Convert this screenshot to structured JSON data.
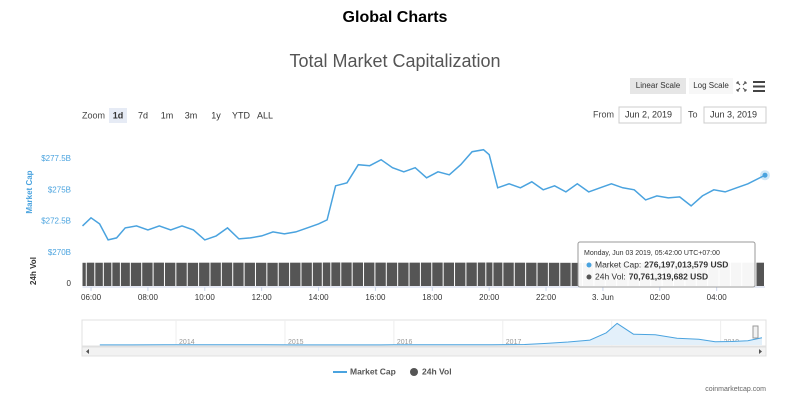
{
  "header": {
    "title": "Global Charts"
  },
  "controls": {
    "scale_buttons": [
      "Linear Scale",
      "Log Scale"
    ],
    "scale_selected": 0,
    "zoom_label": "Zoom",
    "zoom_buttons": [
      "1d",
      "7d",
      "1m",
      "3m",
      "1y",
      "YTD",
      "ALL"
    ],
    "zoom_selected": 0,
    "from_label": "From",
    "from_value": "Jun 2, 2019",
    "to_label": "To",
    "to_value": "Jun 3, 2019"
  },
  "chart_data": {
    "type": "line",
    "title": "Total Market Capitalization",
    "ylabel": "Market Cap",
    "y2label": "24h Vol",
    "log_scale": false,
    "grid": false,
    "x": [
      5.7,
      6.0,
      6.3,
      6.6,
      6.9,
      7.2,
      7.6,
      8.0,
      8.4,
      8.8,
      9.2,
      9.6,
      10.0,
      10.4,
      10.8,
      11.2,
      11.6,
      12.0,
      12.4,
      12.8,
      13.2,
      13.6,
      14.0,
      14.3,
      14.6,
      15.0,
      15.4,
      15.8,
      16.2,
      16.6,
      17.0,
      17.4,
      17.8,
      18.2,
      18.6,
      19.0,
      19.4,
      19.8,
      20.0,
      20.3,
      20.7,
      21.1,
      21.5,
      21.9,
      22.3,
      22.7,
      23.1,
      23.5,
      23.9,
      24.3,
      24.7,
      25.1,
      25.5,
      25.9,
      26.3,
      26.7,
      27.1,
      27.5,
      27.9,
      28.3,
      28.7,
      29.1,
      29.7
    ],
    "xlim": [
      5.7,
      29.7
    ],
    "xticks": [
      {
        "value": 6,
        "label": "06:00"
      },
      {
        "value": 8,
        "label": "08:00"
      },
      {
        "value": 10,
        "label": "10:00"
      },
      {
        "value": 12,
        "label": "12:00"
      },
      {
        "value": 14,
        "label": "14:00"
      },
      {
        "value": 16,
        "label": "16:00"
      },
      {
        "value": 18,
        "label": "18:00"
      },
      {
        "value": 20,
        "label": "20:00"
      },
      {
        "value": 22,
        "label": "22:00"
      },
      {
        "value": 24,
        "label": "3. Jun"
      },
      {
        "value": 26,
        "label": "02:00"
      },
      {
        "value": 28,
        "label": "04:00"
      }
    ],
    "ylim": [
      270000000000,
      279000000000
    ],
    "yticks": [
      {
        "value": 270000000000,
        "label": "$270B"
      },
      {
        "value": 272500000000,
        "label": "$272.5B"
      },
      {
        "value": 275000000000,
        "label": "$275B"
      },
      {
        "value": 277500000000,
        "label": "$277.5B"
      }
    ],
    "y2lim": [
      0,
      85000000000
    ],
    "y2ticks": [
      0
    ],
    "series": [
      {
        "name": "Market Cap",
        "color": "#4aa3df",
        "values": [
          272160000000,
          272800000000,
          272320000000,
          271040000000,
          271200000000,
          272000000000,
          272160000000,
          271840000000,
          272160000000,
          271840000000,
          272160000000,
          271840000000,
          271040000000,
          271360000000,
          272000000000,
          271120000000,
          271200000000,
          271360000000,
          271680000000,
          271520000000,
          271680000000,
          272000000000,
          272320000000,
          272640000000,
          275350000000,
          275590000000,
          277030000000,
          276950000000,
          277430000000,
          276790000000,
          276470000000,
          276790000000,
          275990000000,
          276470000000,
          276230000000,
          277030000000,
          278070000000,
          278230000000,
          277830000000,
          275190000000,
          275510000000,
          275190000000,
          275670000000,
          275030000000,
          275350000000,
          274870000000,
          275510000000,
          274870000000,
          275190000000,
          275510000000,
          275190000000,
          275030000000,
          274230000000,
          274550000000,
          274390000000,
          274470000000,
          273750000000,
          274550000000,
          275030000000,
          274870000000,
          275190000000,
          275510000000,
          276197013579
        ]
      },
      {
        "name": "24h Vol",
        "color": "#555555",
        "axis": "y2",
        "values": [
          70500000000,
          70800000000,
          70600000000,
          70900000000,
          71000000000,
          70700000000,
          70600000000,
          70800000000,
          70900000000,
          70700000000,
          70600000000,
          70500000000,
          70800000000,
          70900000000,
          71000000000,
          70800000000,
          70700000000,
          70600000000,
          70500000000,
          70700000000,
          70800000000,
          70900000000,
          71000000000,
          71200000000,
          71400000000,
          71300000000,
          71200000000,
          71100000000,
          71000000000,
          70900000000,
          70800000000,
          70900000000,
          71000000000,
          71100000000,
          71000000000,
          70900000000,
          71100000000,
          71200000000,
          71300000000,
          71100000000,
          70900000000,
          70800000000,
          70700000000,
          70600000000,
          70500000000,
          70400000000,
          70300000000,
          70400000000,
          70500000000,
          70600000000,
          70500000000,
          70400000000,
          70300000000,
          70200000000,
          70300000000,
          70400000000,
          70500000000,
          70600000000,
          70700000000,
          70600000000,
          70700000000,
          70800000000,
          70761319682
        ]
      }
    ],
    "tooltip": {
      "date": "Monday, Jun 03 2019, 05:42:00 UTC+07:00",
      "items": [
        {
          "label": "Market Cap:",
          "value": "276,197,013,579 USD"
        },
        {
          "label": "24h Vol:",
          "value": "70,761,319,682 USD"
        }
      ]
    },
    "navigator": {
      "x": [
        2013.3,
        2013.6,
        2013.9,
        2014.2,
        2014.5,
        2014.8,
        2015.1,
        2015.4,
        2015.7,
        2016.0,
        2016.3,
        2016.6,
        2016.9,
        2017.2,
        2017.4,
        2017.6,
        2017.8,
        2017.95,
        2018.05,
        2018.2,
        2018.4,
        2018.6,
        2018.8,
        2018.95,
        2019.1,
        2019.25,
        2019.38
      ],
      "xlim": [
        2013.21,
        2019.38
      ],
      "xticks": [
        2014,
        2015,
        2016,
        2017,
        2018,
        2019
      ],
      "ylim": [
        0,
        850000000000
      ],
      "values": [
        2000000000,
        3000000000,
        12000000000,
        10000000000,
        8000000000,
        6000000000,
        4000000000,
        3500000000,
        3600000000,
        7000000000,
        8000000000,
        10000000000,
        12000000000,
        20000000000,
        60000000000,
        110000000000,
        180000000000,
        450000000000,
        800000000000,
        400000000000,
        380000000000,
        250000000000,
        210000000000,
        120000000000,
        130000000000,
        160000000000,
        270000000000
      ]
    }
  },
  "footer": {
    "credit": "coinmarketcap.com"
  }
}
